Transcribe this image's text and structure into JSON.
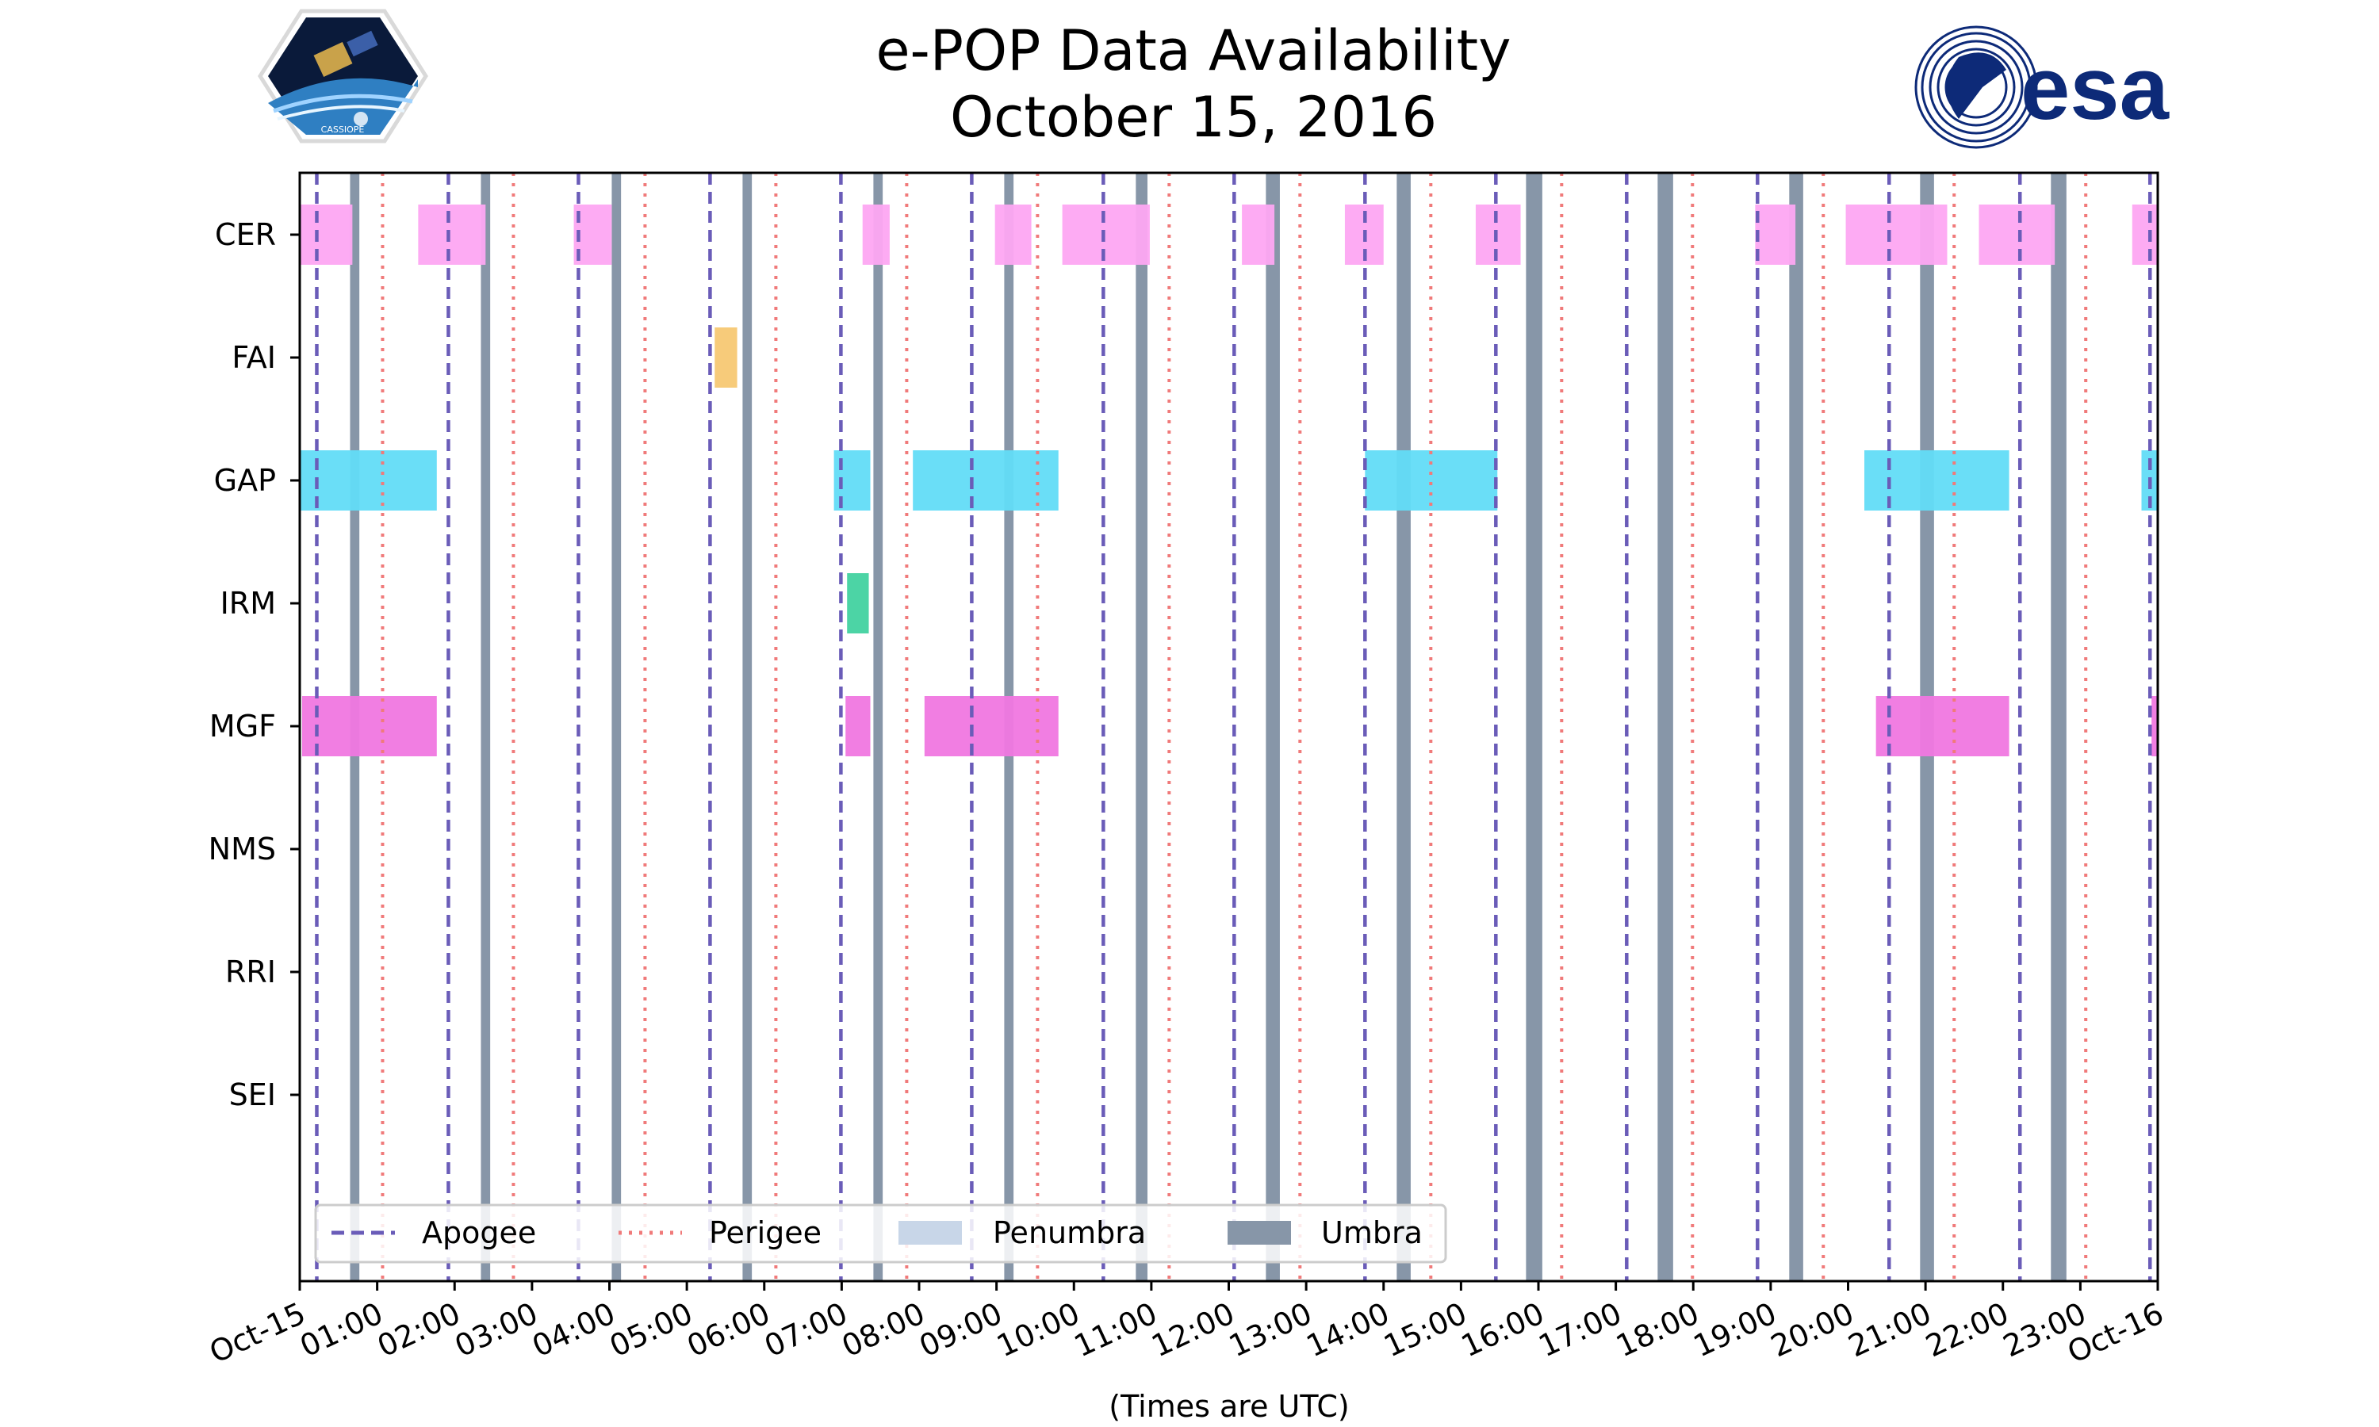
{
  "chart_data": {
    "type": "timeline",
    "title": "e-POP Data Availability",
    "subtitle": "October 15, 2016",
    "xlabel": "(Times are UTC)",
    "x_range_hours": [
      0,
      24
    ],
    "x_tick_labels": [
      "Oct-15",
      "01:00",
      "02:00",
      "03:00",
      "04:00",
      "05:00",
      "06:00",
      "07:00",
      "08:00",
      "09:00",
      "10:00",
      "11:00",
      "12:00",
      "13:00",
      "14:00",
      "15:00",
      "16:00",
      "17:00",
      "18:00",
      "19:00",
      "20:00",
      "21:00",
      "22:00",
      "23:00",
      "Oct-16"
    ],
    "instruments": [
      "CER",
      "FAI",
      "GAP",
      "IRM",
      "MGF",
      "NMS",
      "RRI",
      "SEI"
    ],
    "apogee_hours": [
      0.22,
      1.92,
      3.6,
      5.3,
      6.99,
      8.68,
      10.38,
      12.07,
      13.76,
      15.45,
      17.14,
      18.83,
      20.53,
      22.22,
      23.9
    ],
    "perigee_hours": [
      1.07,
      2.76,
      4.46,
      6.15,
      7.84,
      9.53,
      11.23,
      12.92,
      14.61,
      16.3,
      17.99,
      19.68,
      21.37,
      23.07
    ],
    "umbra_hours": [
      [
        0.65,
        0.77
      ],
      [
        2.34,
        2.46
      ],
      [
        4.03,
        4.15
      ],
      [
        5.72,
        5.84
      ],
      [
        7.41,
        7.53
      ],
      [
        9.1,
        9.22
      ],
      [
        10.8,
        10.95
      ],
      [
        12.48,
        12.66
      ],
      [
        14.17,
        14.35
      ],
      [
        15.84,
        16.05
      ],
      [
        17.54,
        17.74
      ],
      [
        19.24,
        19.42
      ],
      [
        20.93,
        21.11
      ],
      [
        22.62,
        22.82
      ]
    ],
    "penumbra_hours": [],
    "segments": {
      "CER": [
        [
          0.0,
          0.68
        ],
        [
          1.53,
          2.4
        ],
        [
          3.54,
          4.03
        ],
        [
          7.27,
          7.62
        ],
        [
          8.98,
          9.45
        ],
        [
          9.85,
          10.98
        ],
        [
          12.17,
          12.59
        ],
        [
          13.5,
          14.0
        ],
        [
          15.19,
          15.77
        ],
        [
          18.8,
          19.32
        ],
        [
          19.97,
          21.28
        ],
        [
          21.69,
          22.67
        ],
        [
          23.67,
          24.0
        ]
      ],
      "FAI": [
        [
          5.36,
          5.65
        ]
      ],
      "GAP": [
        [
          0.0,
          1.77
        ],
        [
          6.9,
          7.37
        ],
        [
          7.92,
          9.8
        ],
        [
          13.76,
          15.47
        ],
        [
          20.21,
          22.08
        ],
        [
          23.79,
          24.0
        ]
      ],
      "IRM": [
        [
          7.07,
          7.35
        ]
      ],
      "MGF": [
        [
          0.03,
          1.77
        ],
        [
          7.05,
          7.37
        ],
        [
          8.07,
          9.8
        ],
        [
          20.36,
          22.08
        ],
        [
          23.92,
          24.0
        ]
      ],
      "NMS": [],
      "RRI": [],
      "SEI": []
    },
    "colors": {
      "CER": "#fda6f2",
      "FAI": "#f7c873",
      "GAP": "#62dcf7",
      "IRM": "#42d2a0",
      "MGF": "#f077e0",
      "apogee": "#6a5cb8",
      "perigee": "#f07a7a",
      "penumbra": "#c8d6e8",
      "umbra": "#8796a8"
    },
    "legend": {
      "position": "lower-left",
      "entries": [
        "Apogee",
        "Perigee",
        "Penumbra",
        "Umbra"
      ]
    }
  },
  "logos": {
    "left": {
      "caption": "CASSIOPE"
    },
    "right": {
      "wordmark": "esa"
    }
  }
}
